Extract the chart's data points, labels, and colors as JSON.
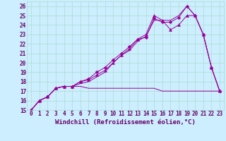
{
  "xlabel": "Windchill (Refroidissement éolien,°C)",
  "ylabel": "",
  "xlim": [
    -0.5,
    23.5
  ],
  "ylim": [
    15,
    26.5
  ],
  "background_color": "#cceeff",
  "grid_color": "#aaddcc",
  "line_color": "#990099",
  "series": [
    {
      "x": [
        0,
        1,
        2,
        3,
        4,
        5,
        6,
        7,
        8,
        9,
        10,
        11,
        12,
        13,
        14,
        15,
        16,
        17,
        18,
        19,
        20,
        21,
        22,
        23
      ],
      "y": [
        15,
        16,
        16.4,
        17.3,
        17.5,
        17.5,
        18.0,
        18.3,
        19.0,
        19.5,
        20.3,
        21.0,
        21.7,
        22.5,
        22.7,
        24.7,
        24.3,
        24.3,
        24.8,
        26.0,
        25.0,
        23.0,
        19.5,
        17.0
      ],
      "marker": "D",
      "markersize": 2.5
    },
    {
      "x": [
        0,
        1,
        2,
        3,
        4,
        5,
        6,
        7,
        8,
        9,
        10,
        11,
        12,
        13,
        14,
        15,
        16,
        17,
        18,
        19,
        20,
        21,
        22,
        23
      ],
      "y": [
        15,
        16,
        16.4,
        17.3,
        17.5,
        17.5,
        18.0,
        18.2,
        18.7,
        19.2,
        20.0,
        20.8,
        21.5,
        22.5,
        23.0,
        25.0,
        24.5,
        23.5,
        24.0,
        25.0,
        25.0,
        23.0,
        19.5,
        17.0
      ],
      "marker": "^",
      "markersize": 3
    },
    {
      "x": [
        0,
        1,
        2,
        3,
        4,
        5,
        6,
        7,
        8,
        9,
        10,
        11,
        12,
        13,
        14,
        15,
        16,
        17,
        18,
        19,
        20,
        21,
        22,
        23
      ],
      "y": [
        15,
        16,
        16.4,
        17.3,
        17.5,
        17.5,
        17.8,
        18.0,
        18.5,
        19.0,
        20.0,
        20.8,
        21.3,
        22.3,
        22.8,
        24.5,
        24.5,
        24.5,
        25.0,
        26.0,
        25.0,
        23.0,
        19.5,
        17.0
      ],
      "marker": null,
      "markersize": 0
    },
    {
      "x": [
        0,
        1,
        2,
        3,
        4,
        5,
        6,
        7,
        8,
        9,
        10,
        11,
        12,
        13,
        14,
        15,
        16,
        17,
        18,
        19,
        20,
        21,
        22,
        23
      ],
      "y": [
        15,
        16,
        16.4,
        17.3,
        17.5,
        17.5,
        17.5,
        17.3,
        17.3,
        17.3,
        17.3,
        17.3,
        17.3,
        17.3,
        17.3,
        17.3,
        17.0,
        17.0,
        17.0,
        17.0,
        17.0,
        17.0,
        17.0,
        17.0
      ],
      "marker": null,
      "markersize": 0
    }
  ],
  "xtick_labels": [
    "0",
    "1",
    "2",
    "3",
    "4",
    "5",
    "6",
    "7",
    "8",
    "9",
    "10",
    "11",
    "12",
    "13",
    "14",
    "15",
    "16",
    "17",
    "18",
    "19",
    "20",
    "21",
    "22",
    "23"
  ],
  "ytick_labels": [
    "15",
    "16",
    "17",
    "18",
    "19",
    "20",
    "21",
    "22",
    "23",
    "24",
    "25",
    "26"
  ],
  "label_color": "#660066",
  "label_fontsize": 6.5,
  "tick_fontsize": 5.5
}
